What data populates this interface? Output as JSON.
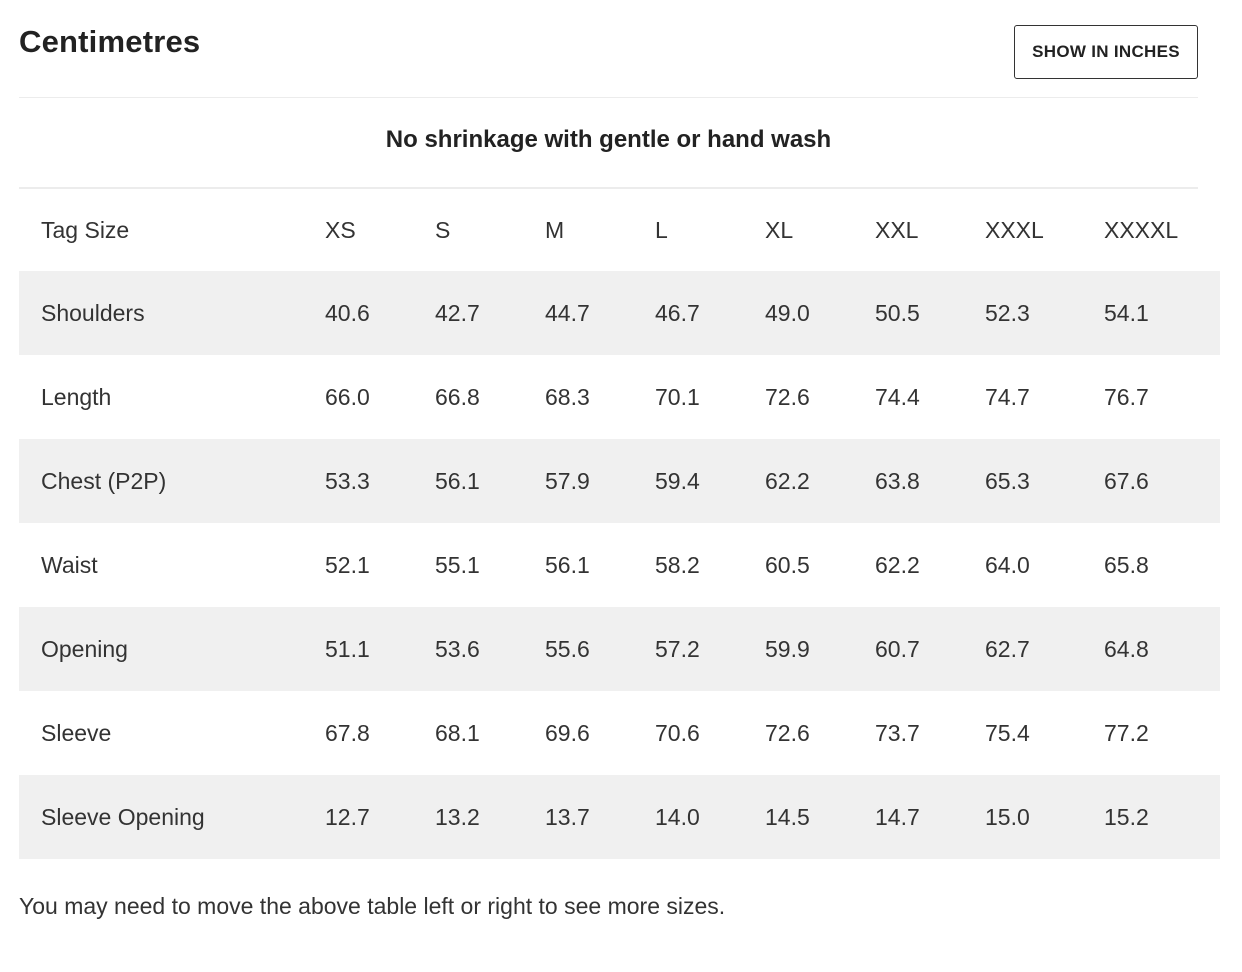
{
  "section": {
    "title": "Centimetres",
    "toggle_label": "SHOW IN INCHES"
  },
  "note": "No shrinkage with gentle or hand wash",
  "table": {
    "header": [
      "Tag Size",
      "XS",
      "S",
      "M",
      "L",
      "XL",
      "XXL",
      "XXXL",
      "XXXXL"
    ],
    "rows": [
      [
        "Shoulders",
        "40.6",
        "42.7",
        "44.7",
        "46.7",
        "49.0",
        "50.5",
        "52.3",
        "54.1"
      ],
      [
        "Length",
        "66.0",
        "66.8",
        "68.3",
        "70.1",
        "72.6",
        "74.4",
        "74.7",
        "76.7"
      ],
      [
        "Chest (P2P)",
        "53.3",
        "56.1",
        "57.9",
        "59.4",
        "62.2",
        "63.8",
        "65.3",
        "67.6"
      ],
      [
        "Waist",
        "52.1",
        "55.1",
        "56.1",
        "58.2",
        "60.5",
        "62.2",
        "64.0",
        "65.8"
      ],
      [
        "Opening",
        "51.1",
        "53.6",
        "55.6",
        "57.2",
        "59.9",
        "60.7",
        "62.7",
        "64.8"
      ],
      [
        "Sleeve",
        "67.8",
        "68.1",
        "69.6",
        "70.6",
        "72.6",
        "73.7",
        "75.4",
        "77.2"
      ],
      [
        "Sleeve Opening",
        "12.7",
        "13.2",
        "13.7",
        "14.0",
        "14.5",
        "14.7",
        "15.0",
        "15.2"
      ]
    ]
  },
  "footnote": "You may need to move the above table left or right to see more sizes."
}
